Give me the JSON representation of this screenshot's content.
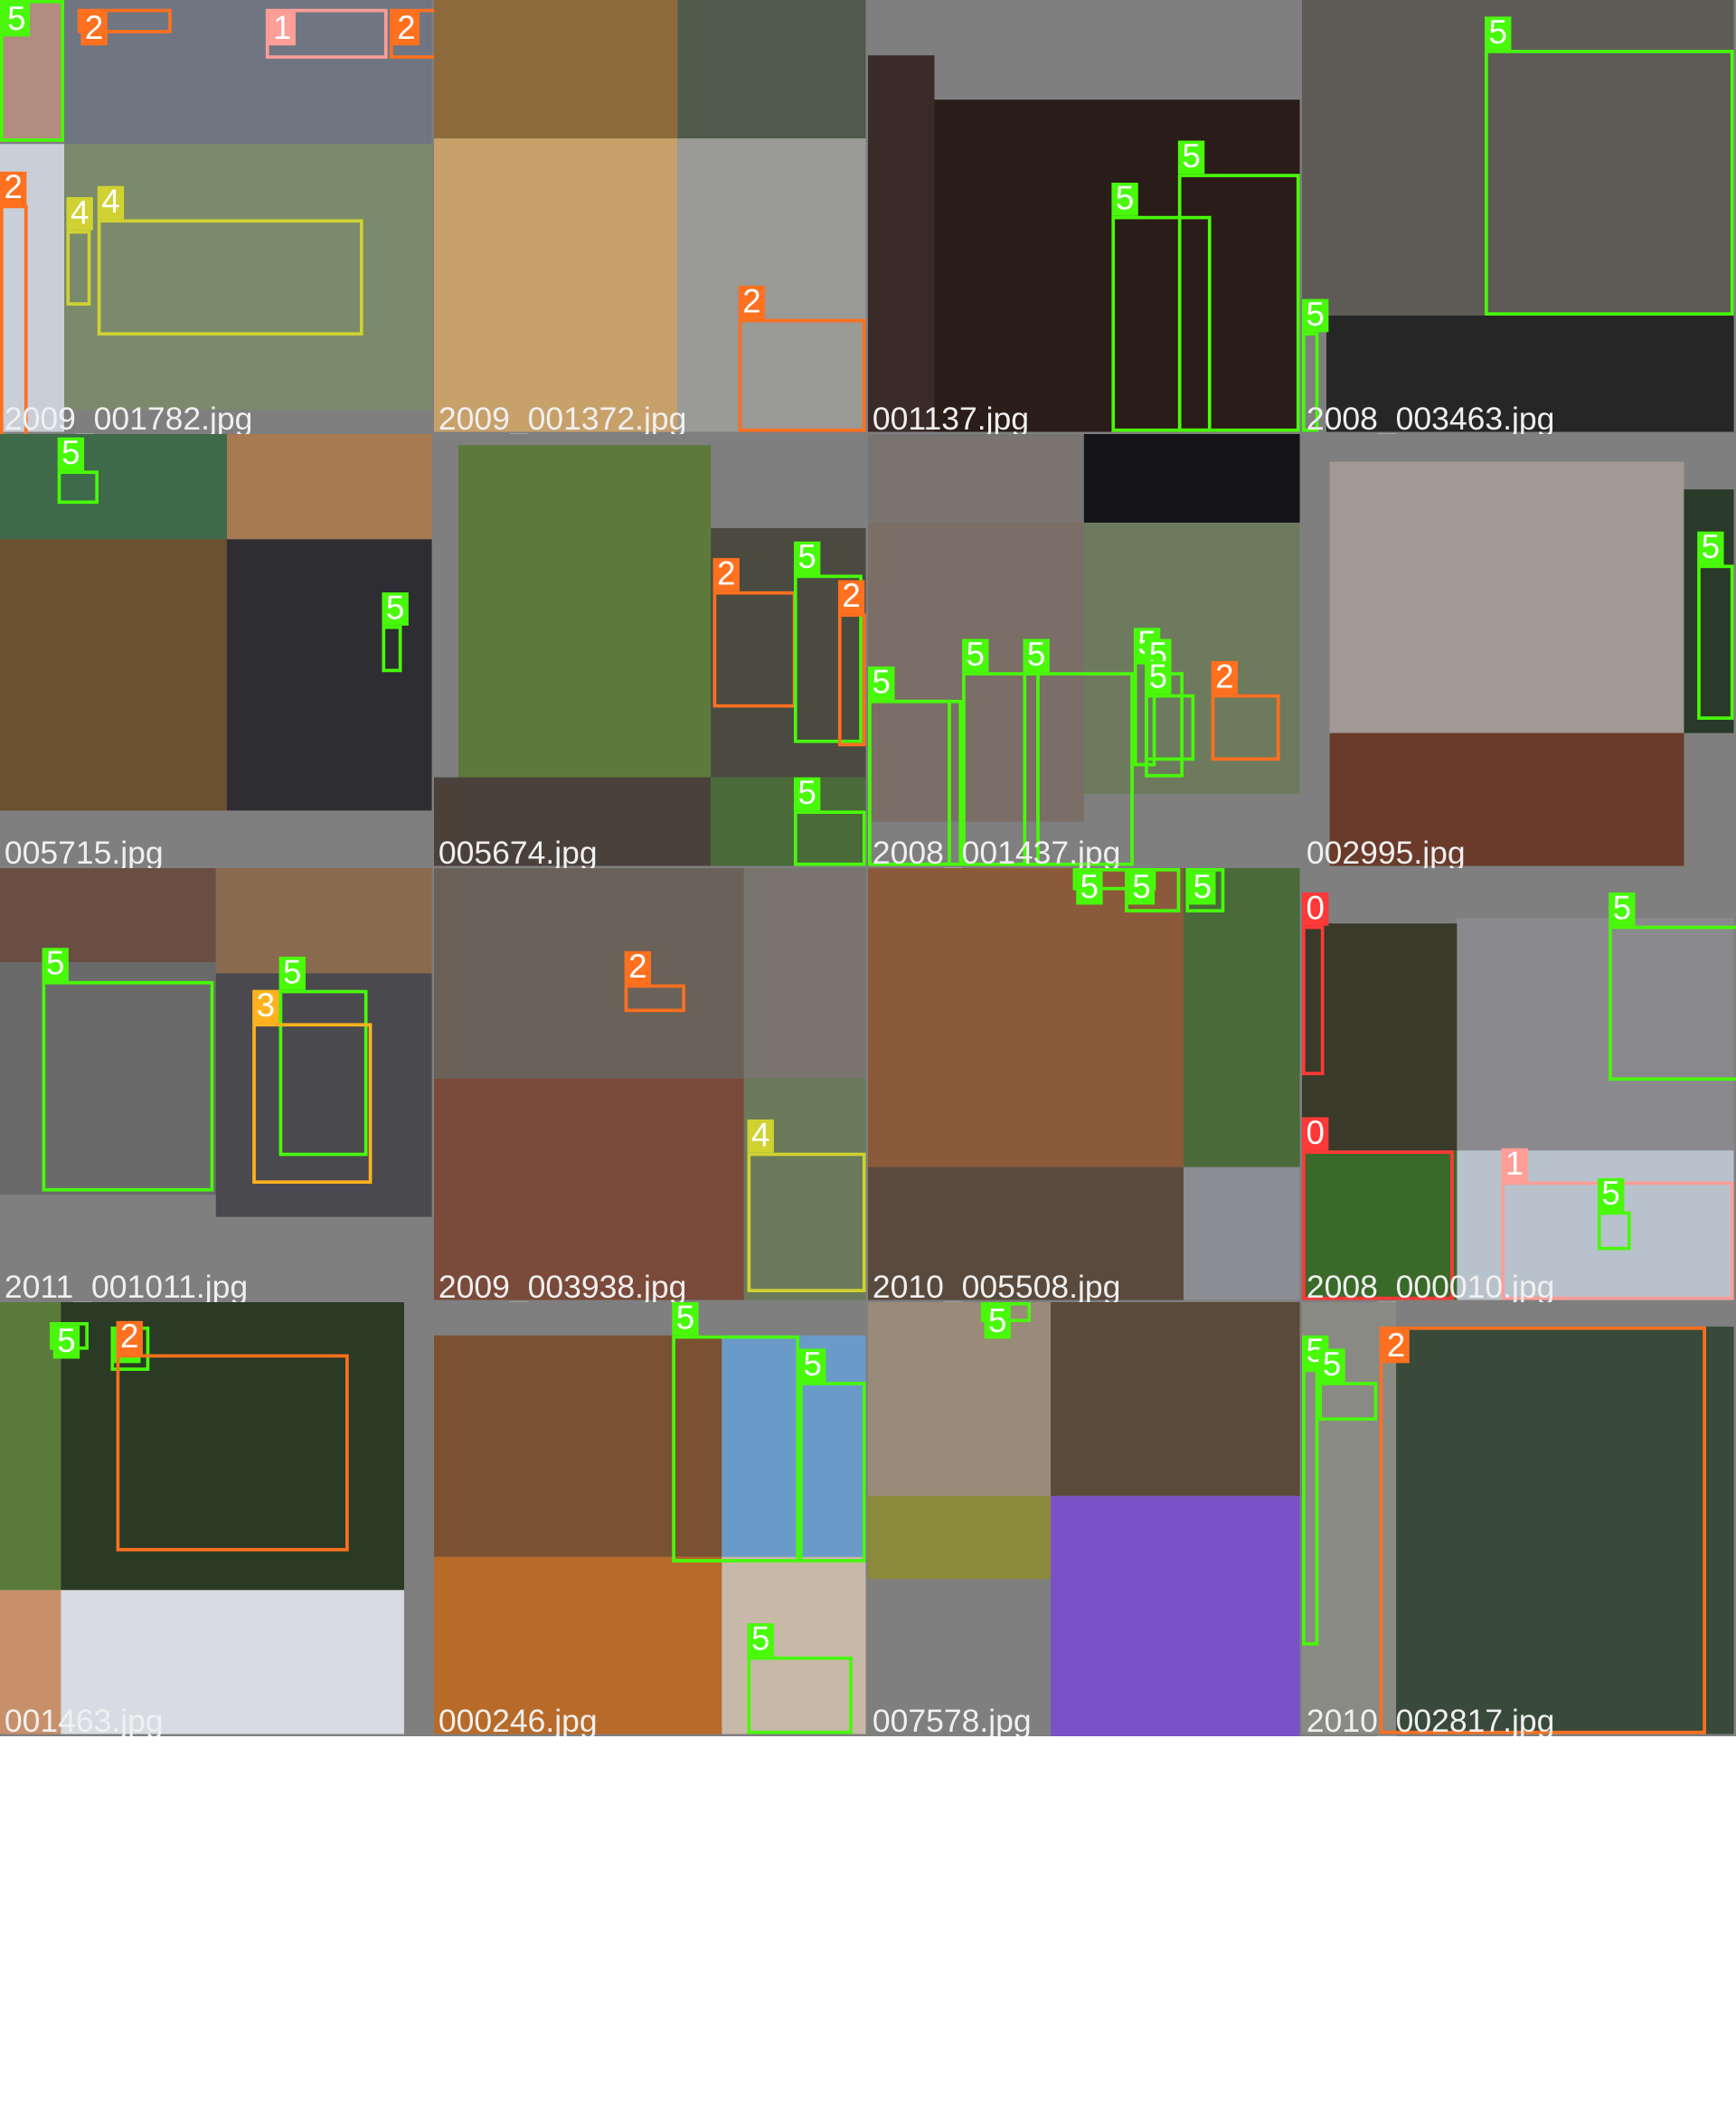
{
  "class_colors": {
    "0": "#ff3838",
    "1": "#ff9d97",
    "2": "#ff701f",
    "3": "#ffb21d",
    "4": "#cfd231",
    "5": "#48f90a"
  },
  "tiles": [
    {
      "filename": "2009_001782.jpg",
      "labels": [
        "5",
        "2",
        "1",
        "2",
        "2",
        "4",
        "4"
      ]
    },
    {
      "filename": "2009_001372.jpg",
      "labels": [
        "2"
      ]
    },
    {
      "filename": "001137.jpg",
      "labels": [
        "5",
        "5"
      ]
    },
    {
      "filename": "2008_003463.jpg",
      "labels": [
        "5",
        "5"
      ]
    },
    {
      "filename": "005715.jpg",
      "labels": [
        "5",
        "5"
      ]
    },
    {
      "filename": "005674.jpg",
      "labels": [
        "2",
        "5",
        "2",
        "5"
      ]
    },
    {
      "filename": "2008_001437.jpg",
      "labels": [
        "5",
        "5",
        "5",
        "5",
        "5",
        "5",
        "5",
        "2"
      ]
    },
    {
      "filename": "002995.jpg",
      "labels": [
        "5"
      ]
    },
    {
      "filename": "2011_001011.jpg",
      "labels": [
        "5",
        "5",
        "3"
      ]
    },
    {
      "filename": "2009_003938.jpg",
      "labels": [
        "2",
        "4"
      ]
    },
    {
      "filename": "2010_005508.jpg",
      "labels": [
        "5",
        "5",
        "5"
      ]
    },
    {
      "filename": "2008_000010.jpg",
      "labels": [
        "5",
        "0",
        "0",
        "1",
        "5"
      ]
    },
    {
      "filename": "001463.jpg",
      "labels": [
        "5",
        "5",
        "2"
      ]
    },
    {
      "filename": "000246.jpg",
      "labels": [
        "5",
        "5",
        "5"
      ]
    },
    {
      "filename": "007578.jpg",
      "labels": [
        "5"
      ]
    },
    {
      "filename": "2010_002817.jpg",
      "labels": [
        "5",
        "5",
        "2"
      ]
    }
  ]
}
